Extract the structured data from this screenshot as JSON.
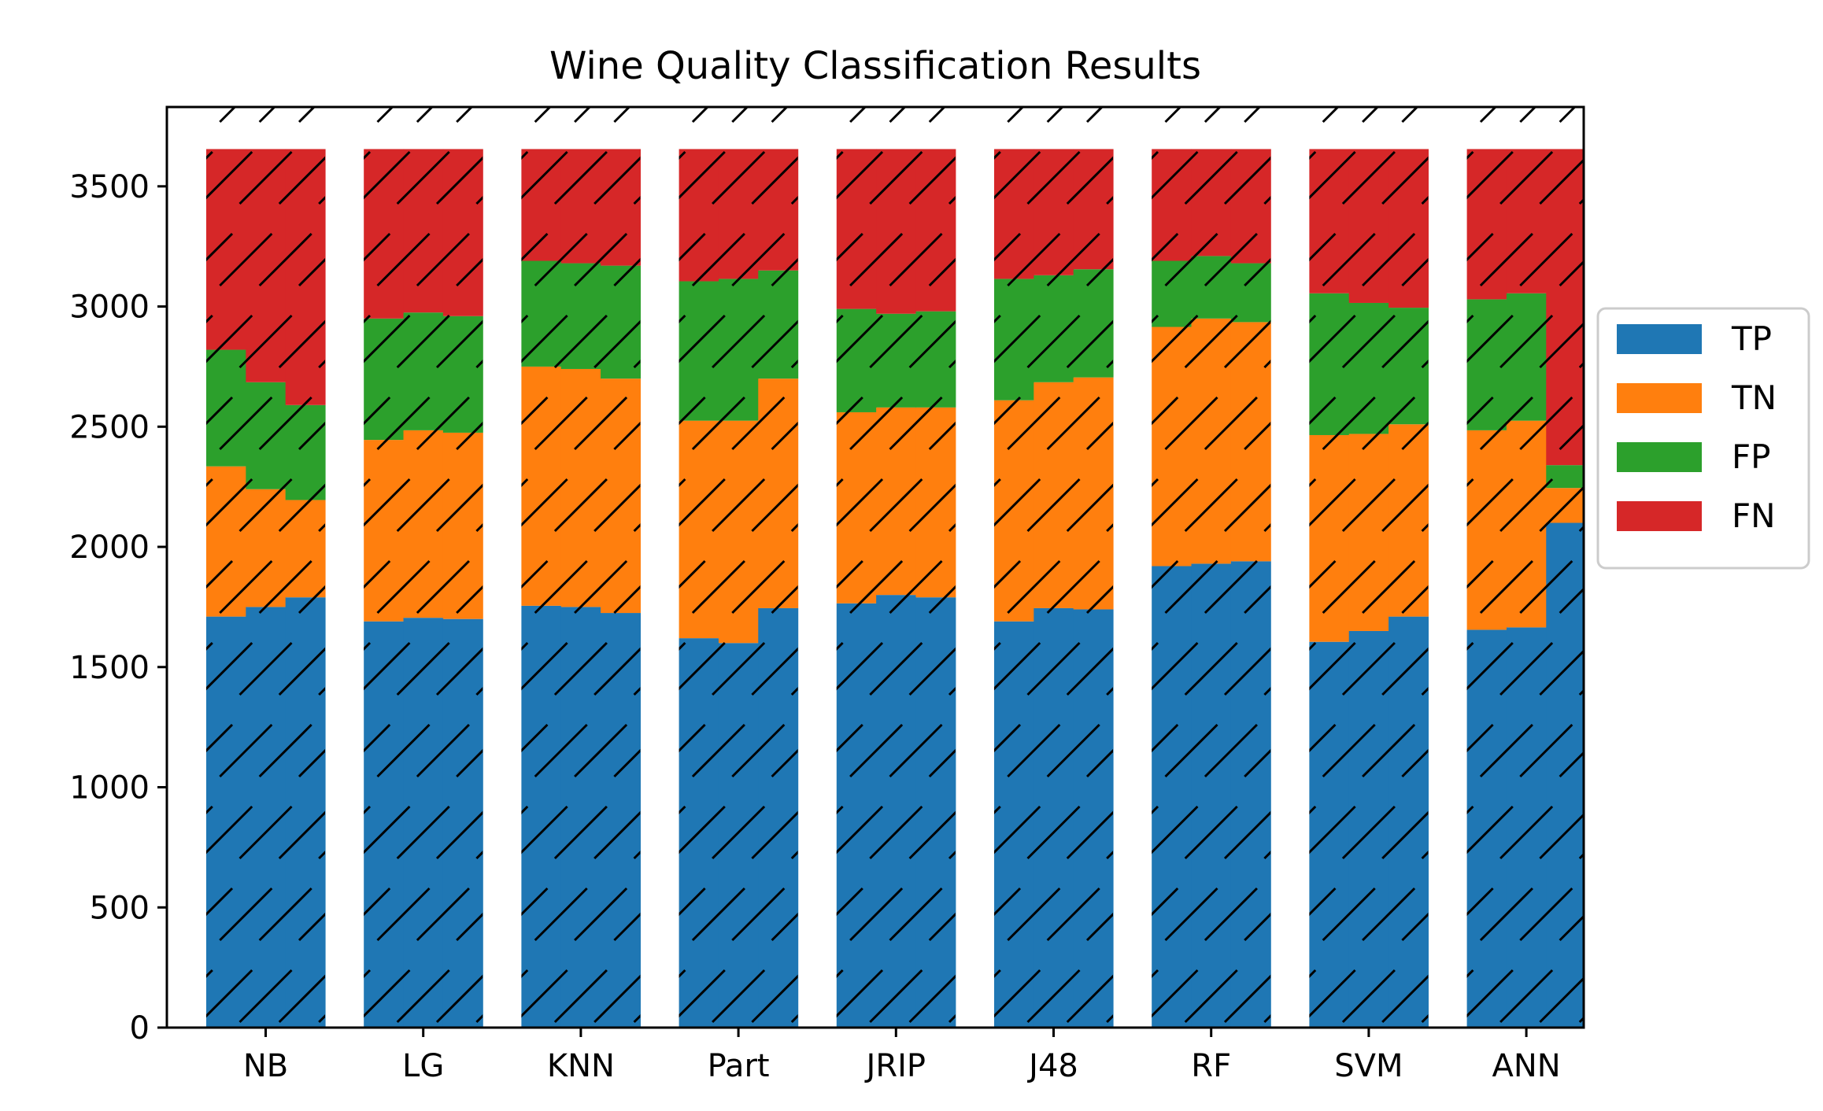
{
  "chart_data": {
    "type": "bar",
    "title": "Wine Quality Classification Results",
    "xlabel": "",
    "ylabel": "",
    "stacked": true,
    "bars_per_group": 3,
    "ylim": [
      0,
      3830
    ],
    "yticks": [
      0,
      500,
      1000,
      1500,
      2000,
      2500,
      3000,
      3500
    ],
    "ytick_labels": [
      "0",
      "500",
      "1000",
      "1500",
      "2000",
      "2500",
      "3000",
      "3500"
    ],
    "categories": [
      "NB",
      "LG",
      "KNN",
      "Part",
      "JRIP",
      "J48",
      "RF",
      "SVM",
      "ANN"
    ],
    "legend": {
      "position": "right",
      "entries": [
        "TP",
        "TN",
        "FP",
        "FN"
      ]
    },
    "colors": {
      "TP": "#1f77b4",
      "TN": "#ff7f0e",
      "FP": "#2ca02c",
      "FN": "#d62728"
    },
    "hatch": "/",
    "series": [
      {
        "name": "TP",
        "values": [
          [
            1710,
            1750,
            1790
          ],
          [
            1690,
            1705,
            1700
          ],
          [
            1755,
            1750,
            1725
          ],
          [
            1620,
            1600,
            1745
          ],
          [
            1765,
            1800,
            1790
          ],
          [
            1690,
            1745,
            1740
          ],
          [
            1920,
            1930,
            1940
          ],
          [
            1605,
            1650,
            1710
          ],
          [
            1655,
            1665,
            2100
          ]
        ]
      },
      {
        "name": "TN",
        "values": [
          [
            625,
            490,
            405
          ],
          [
            755,
            780,
            775
          ],
          [
            995,
            990,
            975
          ],
          [
            905,
            925,
            955
          ],
          [
            795,
            780,
            790
          ],
          [
            920,
            940,
            965
          ],
          [
            995,
            1020,
            995
          ],
          [
            860,
            820,
            800
          ],
          [
            830,
            860,
            145
          ]
        ]
      },
      {
        "name": "FP",
        "values": [
          [
            485,
            445,
            395
          ],
          [
            505,
            490,
            485
          ],
          [
            440,
            440,
            470
          ],
          [
            580,
            590,
            450
          ],
          [
            430,
            390,
            400
          ],
          [
            505,
            445,
            450
          ],
          [
            275,
            260,
            245
          ],
          [
            590,
            545,
            485
          ],
          [
            545,
            530,
            95
          ]
        ]
      },
      {
        "name": "FN",
        "values": [
          [
            835,
            970,
            1065
          ],
          [
            705,
            680,
            695
          ],
          [
            465,
            475,
            485
          ],
          [
            550,
            540,
            505
          ],
          [
            665,
            685,
            675
          ],
          [
            540,
            525,
            500
          ],
          [
            465,
            445,
            475
          ],
          [
            600,
            640,
            660
          ],
          [
            625,
            600,
            1315
          ]
        ]
      }
    ]
  }
}
